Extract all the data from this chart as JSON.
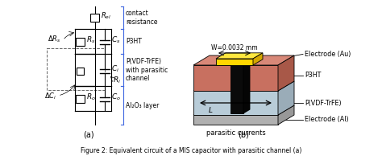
{
  "fig_width": 4.74,
  "fig_height": 2.04,
  "bg_color": "#ffffff",
  "caption": "Figure 2: Equivalent circuit of a MIS capacitor with parasitic channel (a)",
  "label_a": "(a)",
  "label_b": "(b)",
  "colors": {
    "gold": "#FFD700",
    "p3ht_pink": "#C8806A",
    "pvdf_blue": "#C0D8E8",
    "electrode_al": "#C0C0C0",
    "black_box": "#111111",
    "text": "#000000",
    "bracket_blue": "#4169E1",
    "dashed_box": "#666666",
    "wire": "#000000",
    "gray_layer": "#A8A8A8"
  }
}
